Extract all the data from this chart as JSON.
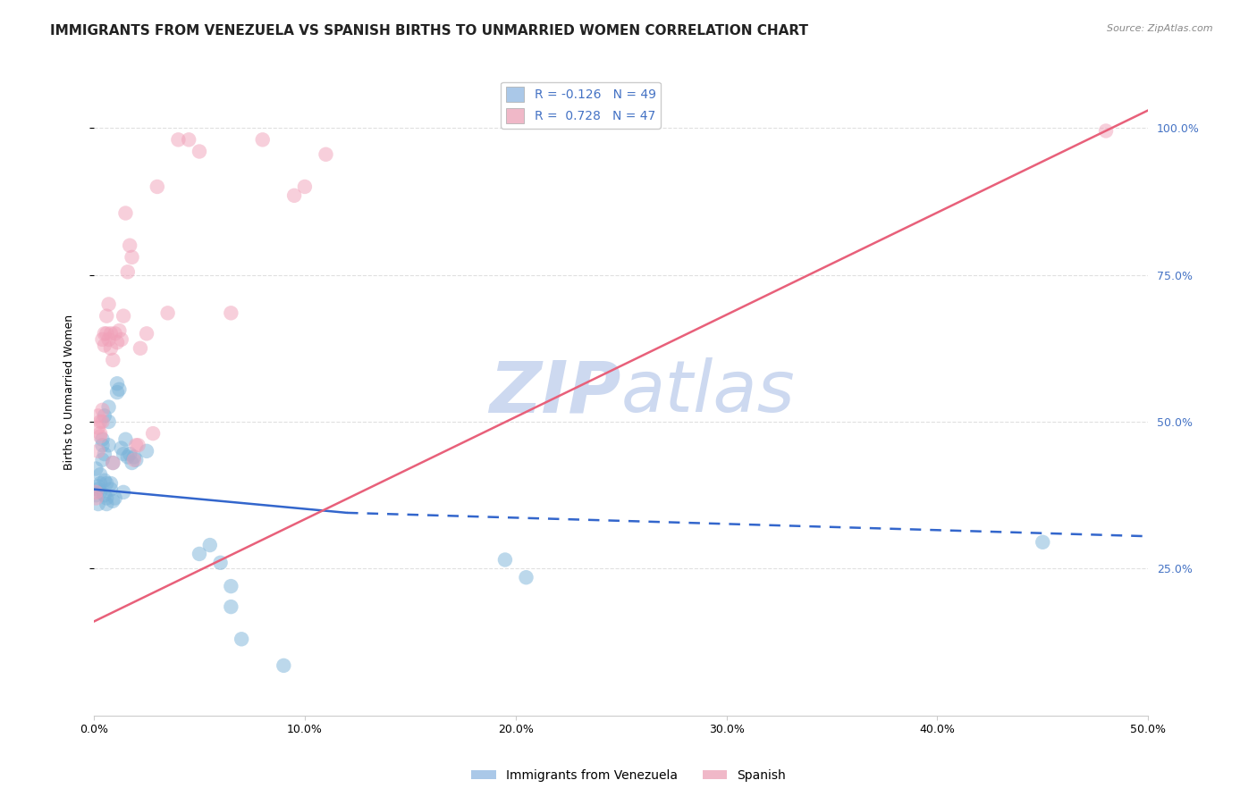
{
  "title": "IMMIGRANTS FROM VENEZUELA VS SPANISH BIRTHS TO UNMARRIED WOMEN CORRELATION CHART",
  "source": "Source: ZipAtlas.com",
  "ylabel_left": "Births to Unmarried Women",
  "xmin": 0.0,
  "xmax": 0.5,
  "ymin": 0.0,
  "ymax": 1.1,
  "yticks": [
    0.25,
    0.5,
    0.75,
    1.0
  ],
  "ytick_labels_right": [
    "25.0%",
    "50.0%",
    "75.0%",
    "100.0%"
  ],
  "xticks": [
    0.0,
    0.1,
    0.2,
    0.3,
    0.4,
    0.5
  ],
  "xtick_labels": [
    "0.0%",
    "10.0%",
    "20.0%",
    "30.0%",
    "40.0%",
    "50.0%"
  ],
  "watermark_zip": "ZIP",
  "watermark_atlas": "atlas",
  "watermark_color": "#cdd9f0",
  "blue_color": "#7ab3d9",
  "pink_color": "#f0a0b8",
  "blue_line_color": "#3366cc",
  "pink_line_color": "#e8607a",
  "legend_blue_color": "#aac8e8",
  "legend_pink_color": "#f0b8c8",
  "legend_label_1": "R = -0.126   N = 49",
  "legend_label_2": "R =  0.728   N = 47",
  "bottom_legend_label_1": "Immigrants from Venezuela",
  "bottom_legend_label_2": "Spanish",
  "blue_scatter": [
    [
      0.001,
      0.375
    ],
    [
      0.001,
      0.42
    ],
    [
      0.002,
      0.385
    ],
    [
      0.002,
      0.36
    ],
    [
      0.002,
      0.39
    ],
    [
      0.003,
      0.41
    ],
    [
      0.003,
      0.38
    ],
    [
      0.003,
      0.395
    ],
    [
      0.004,
      0.435
    ],
    [
      0.004,
      0.47
    ],
    [
      0.004,
      0.46
    ],
    [
      0.005,
      0.445
    ],
    [
      0.005,
      0.4
    ],
    [
      0.005,
      0.375
    ],
    [
      0.005,
      0.51
    ],
    [
      0.006,
      0.37
    ],
    [
      0.006,
      0.36
    ],
    [
      0.006,
      0.395
    ],
    [
      0.007,
      0.46
    ],
    [
      0.007,
      0.5
    ],
    [
      0.007,
      0.525
    ],
    [
      0.008,
      0.385
    ],
    [
      0.008,
      0.395
    ],
    [
      0.009,
      0.43
    ],
    [
      0.009,
      0.365
    ],
    [
      0.01,
      0.37
    ],
    [
      0.011,
      0.55
    ],
    [
      0.011,
      0.565
    ],
    [
      0.012,
      0.555
    ],
    [
      0.013,
      0.455
    ],
    [
      0.014,
      0.445
    ],
    [
      0.014,
      0.38
    ],
    [
      0.015,
      0.47
    ],
    [
      0.016,
      0.44
    ],
    [
      0.017,
      0.445
    ],
    [
      0.018,
      0.43
    ],
    [
      0.019,
      0.44
    ],
    [
      0.02,
      0.435
    ],
    [
      0.025,
      0.45
    ],
    [
      0.05,
      0.275
    ],
    [
      0.055,
      0.29
    ],
    [
      0.06,
      0.26
    ],
    [
      0.065,
      0.22
    ],
    [
      0.065,
      0.185
    ],
    [
      0.07,
      0.13
    ],
    [
      0.09,
      0.085
    ],
    [
      0.195,
      0.265
    ],
    [
      0.205,
      0.235
    ],
    [
      0.45,
      0.295
    ]
  ],
  "pink_scatter": [
    [
      0.001,
      0.38
    ],
    [
      0.001,
      0.37
    ],
    [
      0.002,
      0.49
    ],
    [
      0.002,
      0.45
    ],
    [
      0.002,
      0.51
    ],
    [
      0.003,
      0.475
    ],
    [
      0.003,
      0.5
    ],
    [
      0.003,
      0.48
    ],
    [
      0.004,
      0.52
    ],
    [
      0.004,
      0.5
    ],
    [
      0.004,
      0.64
    ],
    [
      0.005,
      0.65
    ],
    [
      0.005,
      0.63
    ],
    [
      0.006,
      0.68
    ],
    [
      0.006,
      0.65
    ],
    [
      0.007,
      0.7
    ],
    [
      0.007,
      0.64
    ],
    [
      0.008,
      0.65
    ],
    [
      0.008,
      0.625
    ],
    [
      0.009,
      0.605
    ],
    [
      0.009,
      0.43
    ],
    [
      0.01,
      0.65
    ],
    [
      0.011,
      0.635
    ],
    [
      0.012,
      0.655
    ],
    [
      0.013,
      0.64
    ],
    [
      0.014,
      0.68
    ],
    [
      0.015,
      0.855
    ],
    [
      0.016,
      0.755
    ],
    [
      0.017,
      0.8
    ],
    [
      0.018,
      0.78
    ],
    [
      0.019,
      0.435
    ],
    [
      0.02,
      0.46
    ],
    [
      0.021,
      0.46
    ],
    [
      0.022,
      0.625
    ],
    [
      0.025,
      0.65
    ],
    [
      0.028,
      0.48
    ],
    [
      0.03,
      0.9
    ],
    [
      0.035,
      0.685
    ],
    [
      0.04,
      0.98
    ],
    [
      0.045,
      0.98
    ],
    [
      0.05,
      0.96
    ],
    [
      0.065,
      0.685
    ],
    [
      0.08,
      0.98
    ],
    [
      0.095,
      0.885
    ],
    [
      0.1,
      0.9
    ],
    [
      0.11,
      0.955
    ],
    [
      0.48,
      0.995
    ]
  ],
  "blue_line_solid": {
    "x0": 0.0,
    "x1": 0.12,
    "y0": 0.385,
    "y1": 0.345
  },
  "blue_line_dashed": {
    "x0": 0.12,
    "x1": 0.5,
    "y0": 0.345,
    "y1": 0.305
  },
  "pink_line": {
    "x0": 0.0,
    "x1": 0.5,
    "y0": 0.16,
    "y1": 1.03
  },
  "grid_color": "#e0e0e0",
  "background_color": "#ffffff",
  "title_fontsize": 11,
  "tick_fontsize": 9,
  "legend_fontsize": 10,
  "ylabel_fontsize": 9,
  "source_fontsize": 8
}
